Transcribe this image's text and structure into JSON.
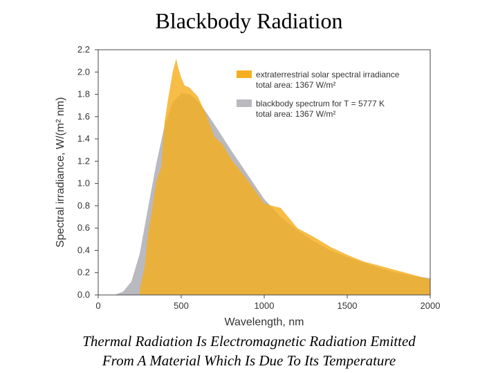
{
  "slide": {
    "title": "Blackbody Radiation",
    "caption_line1": "Thermal Radiation Is Electromagnetic Radiation Emitted",
    "caption_line2": "From A Material Which Is Due To Its Temperature"
  },
  "chart_data": {
    "type": "area",
    "xlabel": "Wavelength, nm",
    "ylabel": "Spectral irradiance, W/(m² nm)",
    "xlim": [
      0,
      2000
    ],
    "ylim": [
      0,
      2.2
    ],
    "xticks": [
      0,
      500,
      1000,
      1500,
      2000
    ],
    "yticks": [
      "0.0",
      "0.2",
      "0.4",
      "0.6",
      "0.8",
      "1.0",
      "1.2",
      "1.4",
      "1.6",
      "1.8",
      "2.0",
      "2.2"
    ],
    "legend_position": "top-right",
    "grid": false,
    "series": [
      {
        "name": "blackbody spectrum for T = 5777 K",
        "note": "total area: 1367 W/m²",
        "color": "#b9b9c0",
        "x": [
          100,
          150,
          200,
          250,
          300,
          350,
          400,
          450,
          500,
          550,
          600,
          650,
          700,
          800,
          900,
          1000,
          1100,
          1200,
          1300,
          1400,
          1500,
          1600,
          1700,
          1800,
          1900,
          2000
        ],
        "y": [
          0.0,
          0.03,
          0.12,
          0.37,
          0.78,
          1.18,
          1.52,
          1.73,
          1.81,
          1.8,
          1.74,
          1.64,
          1.53,
          1.3,
          1.08,
          0.86,
          0.7,
          0.58,
          0.48,
          0.4,
          0.34,
          0.29,
          0.24,
          0.2,
          0.17,
          0.15
        ]
      },
      {
        "name": "extraterrestrial solar spectral irradiance",
        "note": "total area: 1367 W/m²",
        "color": "#f5ae1f",
        "x": [
          250,
          280,
          300,
          320,
          350,
          380,
          400,
          420,
          450,
          470,
          480,
          500,
          520,
          550,
          600,
          650,
          700,
          750,
          800,
          900,
          1000,
          1100,
          1200,
          1300,
          1400,
          1500,
          1600,
          1700,
          1800,
          1900,
          2000
        ],
        "y": [
          0.05,
          0.25,
          0.55,
          0.72,
          1.02,
          1.15,
          1.55,
          1.75,
          2.01,
          2.12,
          2.05,
          1.95,
          1.88,
          1.86,
          1.78,
          1.62,
          1.42,
          1.35,
          1.22,
          1.03,
          0.82,
          0.78,
          0.6,
          0.52,
          0.43,
          0.36,
          0.3,
          0.26,
          0.22,
          0.18,
          0.14
        ]
      }
    ]
  }
}
